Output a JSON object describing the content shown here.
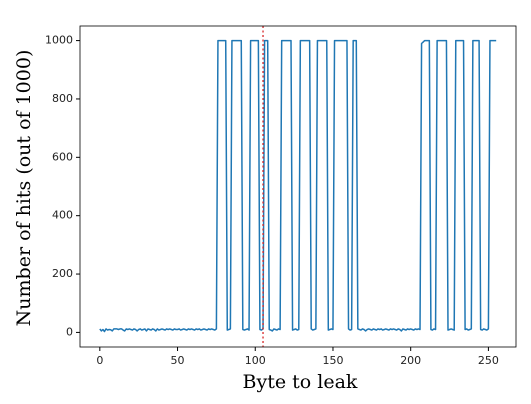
{
  "chart_data": {
    "type": "line",
    "x_label": "Byte to leak",
    "y_label": "Number of hits (out of 1000)",
    "x": [
      0,
      1,
      2,
      3,
      4,
      5,
      6,
      7,
      8,
      9,
      10,
      11,
      12,
      13,
      14,
      15,
      16,
      17,
      18,
      19,
      20,
      21,
      22,
      23,
      24,
      25,
      26,
      27,
      28,
      29,
      30,
      31,
      32,
      33,
      34,
      35,
      36,
      37,
      38,
      39,
      40,
      41,
      42,
      43,
      44,
      45,
      46,
      47,
      48,
      49,
      50,
      51,
      52,
      53,
      54,
      55,
      56,
      57,
      58,
      59,
      60,
      61,
      62,
      63,
      64,
      65,
      66,
      67,
      68,
      69,
      70,
      71,
      72,
      73,
      74,
      75,
      76,
      77,
      78,
      79,
      80,
      81,
      82,
      83,
      84,
      85,
      86,
      87,
      88,
      89,
      90,
      91,
      92,
      93,
      94,
      95,
      96,
      97,
      98,
      99,
      100,
      101,
      102,
      103,
      104,
      105,
      106,
      107,
      108,
      109,
      110,
      111,
      112,
      113,
      114,
      115,
      116,
      117,
      118,
      119,
      120,
      121,
      122,
      123,
      124,
      125,
      126,
      127,
      128,
      129,
      130,
      131,
      132,
      133,
      134,
      135,
      136,
      137,
      138,
      139,
      140,
      141,
      142,
      143,
      144,
      145,
      146,
      147,
      148,
      149,
      150,
      151,
      152,
      153,
      154,
      155,
      156,
      157,
      158,
      159,
      160,
      161,
      162,
      163,
      164,
      165,
      166,
      167,
      168,
      169,
      170,
      171,
      172,
      173,
      174,
      175,
      176,
      177,
      178,
      179,
      180,
      181,
      182,
      183,
      184,
      185,
      186,
      187,
      188,
      189,
      190,
      191,
      192,
      193,
      194,
      195,
      196,
      197,
      198,
      199,
      200,
      201,
      202,
      203,
      204,
      205,
      206,
      207,
      208,
      209,
      210,
      211,
      212,
      213,
      214,
      215,
      216,
      217,
      218,
      219,
      220,
      221,
      222,
      223,
      224,
      225,
      226,
      227,
      228,
      229,
      230,
      231,
      232,
      233,
      234,
      235,
      236,
      237,
      238,
      239,
      240,
      241,
      242,
      243,
      244,
      245,
      246,
      247,
      248,
      249,
      250,
      251,
      252,
      253,
      254,
      255
    ],
    "series": [
      {
        "color": "#1f77b4",
        "values": [
          12,
          5,
          10,
          3,
          12,
          8,
          10,
          9,
          5,
          12,
          12,
          12,
          10,
          12,
          12,
          8,
          5,
          12,
          10,
          12,
          10,
          8,
          12,
          10,
          5,
          10,
          12,
          8,
          10,
          12,
          5,
          12,
          10,
          8,
          12,
          10,
          5,
          12,
          8,
          10,
          12,
          10,
          8,
          12,
          10,
          12,
          10,
          8,
          12,
          10,
          10,
          12,
          8,
          10,
          12,
          10,
          8,
          12,
          10,
          12,
          10,
          8,
          12,
          10,
          12,
          8,
          10,
          12,
          10,
          8,
          12,
          10,
          12,
          10,
          8,
          12,
          1000,
          1000,
          1000,
          1000,
          1000,
          1000,
          8,
          10,
          12,
          1000,
          1000,
          1000,
          1000,
          1000,
          1000,
          1000,
          10,
          8,
          10,
          12,
          8,
          1000,
          1000,
          1000,
          1000,
          1000,
          1000,
          10,
          8,
          12,
          1000,
          1000,
          1000,
          10,
          8,
          5,
          12,
          10,
          8,
          12,
          10,
          1000,
          1000,
          1000,
          1000,
          1000,
          1000,
          1000,
          8,
          10,
          12,
          8,
          10,
          1000,
          1000,
          1000,
          1000,
          1000,
          1000,
          1000,
          12,
          8,
          10,
          12,
          1000,
          1000,
          1000,
          1000,
          1000,
          1000,
          1000,
          8,
          10,
          12,
          10,
          1000,
          1000,
          1000,
          1000,
          1000,
          1000,
          1000,
          1000,
          1000,
          12,
          8,
          10,
          1000,
          1000,
          1000,
          12,
          10,
          8,
          12,
          10,
          5,
          10,
          12,
          10,
          8,
          12,
          10,
          8,
          12,
          10,
          12,
          8,
          10,
          12,
          10,
          8,
          12,
          10,
          12,
          10,
          8,
          12,
          10,
          5,
          12,
          10,
          8,
          12,
          10,
          12,
          10,
          8,
          12,
          10,
          12,
          10,
          990,
          995,
          1000,
          1000,
          1000,
          1000,
          10,
          8,
          12,
          10,
          1000,
          1000,
          1000,
          1000,
          1000,
          1000,
          1000,
          8,
          10,
          12,
          10,
          8,
          1000,
          1000,
          1000,
          1000,
          1000,
          1000,
          10,
          12,
          8,
          10,
          12,
          1000,
          1000,
          1000,
          1000,
          1000,
          10,
          8,
          12,
          10,
          8,
          12,
          1000,
          1000,
          1000,
          1000,
          1000
        ]
      }
    ],
    "vline": {
      "x": 105,
      "color": "#d62728"
    },
    "xlim": [
      -12.75,
      267.75
    ],
    "xticks": [
      0,
      50,
      100,
      150,
      200,
      250
    ],
    "ylim": [
      -50,
      1050
    ],
    "yticks": [
      0,
      200,
      400,
      600,
      800,
      1000
    ]
  }
}
